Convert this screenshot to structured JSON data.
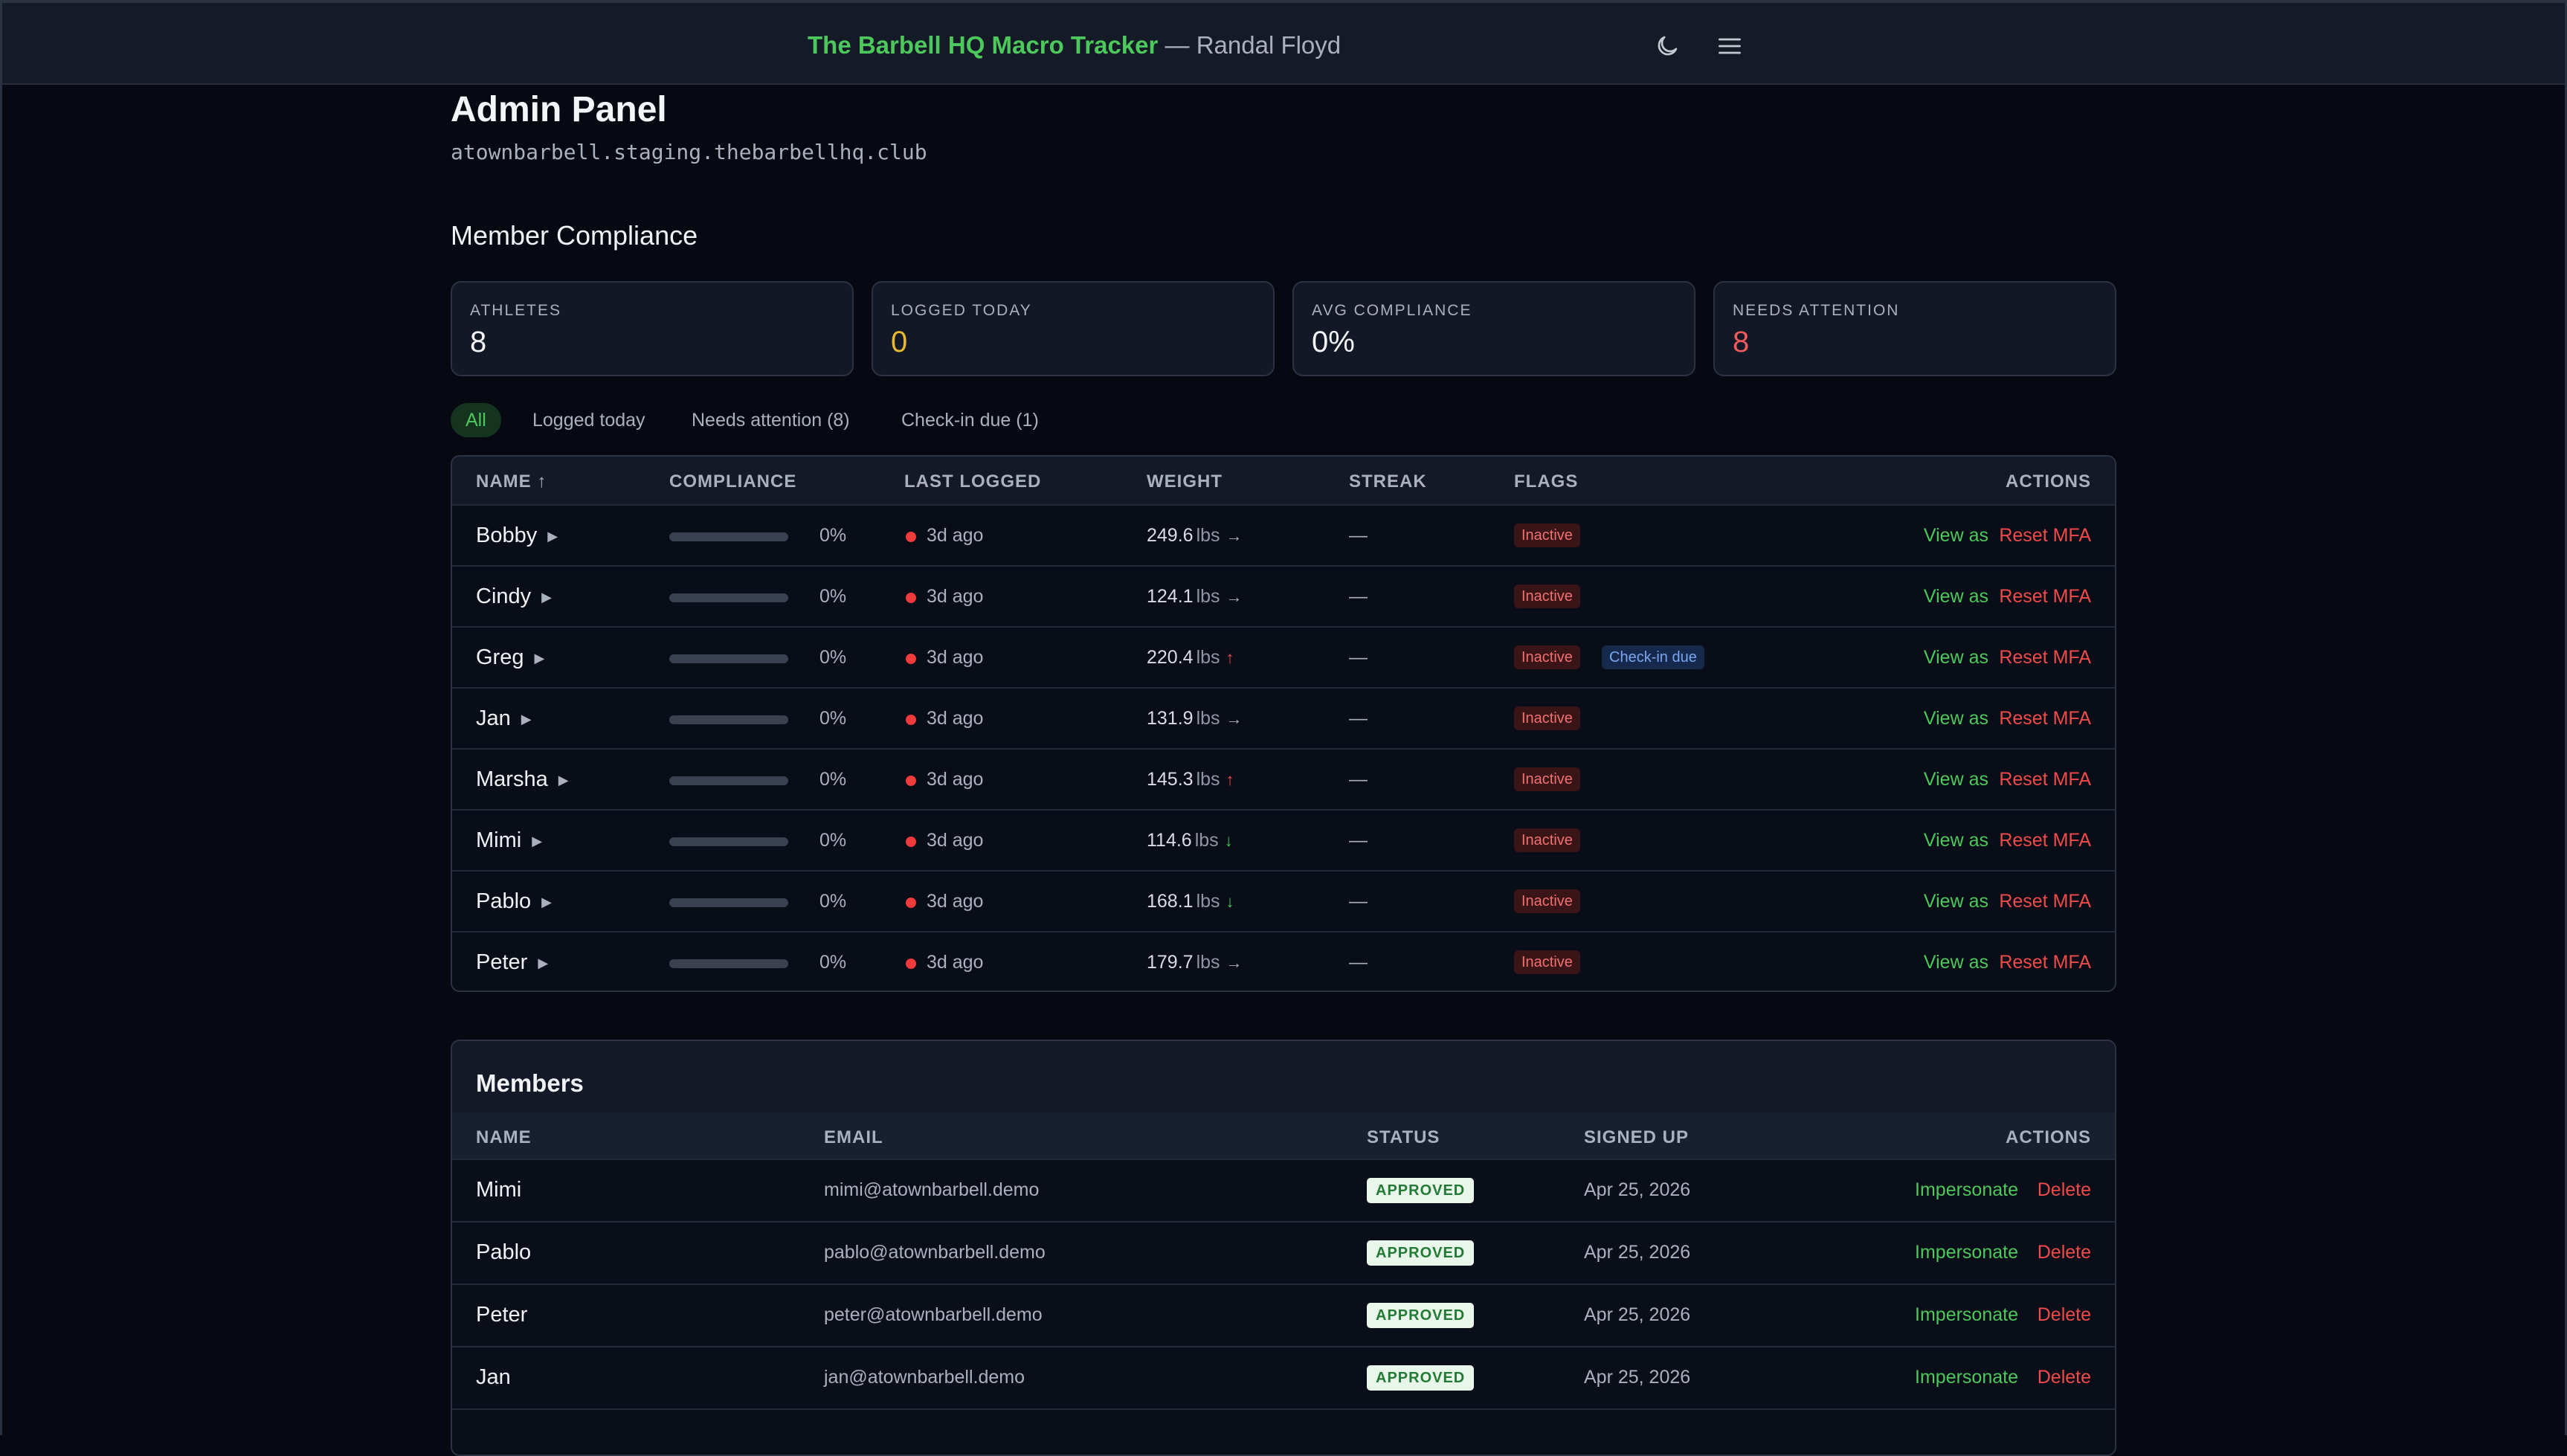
{
  "header": {
    "app_title": "The Barbell HQ Macro Tracker",
    "user_suffix": "— Randal Floyd",
    "icons": [
      "moon-icon",
      "menu-icon"
    ]
  },
  "page": {
    "title": "Admin Panel",
    "domain": "atownbarbell.staging.thebarbellhq.club"
  },
  "compliance": {
    "title": "Member Compliance",
    "stats": [
      {
        "label": "ATHLETES",
        "value": "8"
      },
      {
        "label": "LOGGED TODAY",
        "value": "0"
      },
      {
        "label": "AVG COMPLIANCE",
        "value": "0%"
      },
      {
        "label": "NEEDS ATTENTION",
        "value": "8"
      }
    ],
    "filters": [
      "All",
      "Logged today",
      "Needs attention (8)",
      "Check-in due (1)"
    ],
    "columns": [
      "NAME ↑",
      "COMPLIANCE",
      "LAST LOGGED",
      "WEIGHT",
      "STREAK",
      "FLAGS",
      "ACTIONS"
    ],
    "rows": [
      {
        "name": "Bobby",
        "caret": "▶",
        "compliance": 0,
        "compliance_label": "0%",
        "last_logged": "3d ago",
        "weight": "249.6",
        "unit": "lbs",
        "trend": "→",
        "trend_dir": "flat",
        "streak": "—",
        "flag": "Inactive",
        "flag2": "",
        "view": "View as",
        "reset": "Reset MFA"
      },
      {
        "name": "Cindy",
        "caret": "▶",
        "compliance": 0,
        "compliance_label": "0%",
        "last_logged": "3d ago",
        "weight": "124.1",
        "unit": "lbs",
        "trend": "→",
        "trend_dir": "flat",
        "streak": "—",
        "flag": "Inactive",
        "flag2": "",
        "view": "View as",
        "reset": "Reset MFA"
      },
      {
        "name": "Greg",
        "caret": "▶",
        "compliance": 0,
        "compliance_label": "0%",
        "last_logged": "3d ago",
        "weight": "220.4",
        "unit": "lbs",
        "trend": "↑",
        "trend_dir": "up",
        "streak": "—",
        "flag": "Inactive",
        "flag2": "Check-in due",
        "view": "View as",
        "reset": "Reset MFA"
      },
      {
        "name": "Jan",
        "caret": "▶",
        "compliance": 0,
        "compliance_label": "0%",
        "last_logged": "3d ago",
        "weight": "131.9",
        "unit": "lbs",
        "trend": "→",
        "trend_dir": "flat",
        "streak": "—",
        "flag": "Inactive",
        "flag2": "",
        "view": "View as",
        "reset": "Reset MFA"
      },
      {
        "name": "Marsha",
        "caret": "▶",
        "compliance": 0,
        "compliance_label": "0%",
        "last_logged": "3d ago",
        "weight": "145.3",
        "unit": "lbs",
        "trend": "↑",
        "trend_dir": "up",
        "streak": "—",
        "flag": "Inactive",
        "flag2": "",
        "view": "View as",
        "reset": "Reset MFA"
      },
      {
        "name": "Mimi",
        "caret": "▶",
        "compliance": 0,
        "compliance_label": "0%",
        "last_logged": "3d ago",
        "weight": "114.6",
        "unit": "lbs",
        "trend": "↓",
        "trend_dir": "down",
        "streak": "—",
        "flag": "Inactive",
        "flag2": "",
        "view": "View as",
        "reset": "Reset MFA"
      },
      {
        "name": "Pablo",
        "caret": "▶",
        "compliance": 0,
        "compliance_label": "0%",
        "last_logged": "3d ago",
        "weight": "168.1",
        "unit": "lbs",
        "trend": "↓",
        "trend_dir": "down",
        "streak": "—",
        "flag": "Inactive",
        "flag2": "",
        "view": "View as",
        "reset": "Reset MFA"
      },
      {
        "name": "Peter",
        "caret": "▶",
        "compliance": 0,
        "compliance_label": "0%",
        "last_logged": "3d ago",
        "weight": "179.7",
        "unit": "lbs",
        "trend": "→",
        "trend_dir": "flat",
        "streak": "—",
        "flag": "Inactive",
        "flag2": "",
        "view": "View as",
        "reset": "Reset MFA"
      }
    ]
  },
  "members": {
    "title": "Members",
    "columns": [
      "NAME",
      "EMAIL",
      "STATUS",
      "SIGNED UP",
      "ACTIONS"
    ],
    "rows": [
      {
        "name": "Mimi",
        "email": "mimi@atownbarbell.demo",
        "status": "APPROVED",
        "signed_up": "Apr 25, 2026",
        "impersonate": "Impersonate",
        "delete": "Delete"
      },
      {
        "name": "Pablo",
        "email": "pablo@atownbarbell.demo",
        "status": "APPROVED",
        "signed_up": "Apr 25, 2026",
        "impersonate": "Impersonate",
        "delete": "Delete"
      },
      {
        "name": "Peter",
        "email": "peter@atownbarbell.demo",
        "status": "APPROVED",
        "signed_up": "Apr 25, 2026",
        "impersonate": "Impersonate",
        "delete": "Delete"
      },
      {
        "name": "Jan",
        "email": "jan@atownbarbell.demo",
        "status": "APPROVED",
        "signed_up": "Apr 25, 2026",
        "impersonate": "Impersonate",
        "delete": "Delete"
      }
    ]
  },
  "colors": {
    "accent": "#4cc85c",
    "danger": "#ef4b4b",
    "warning": "#e8b931",
    "background": "#060912",
    "surface": "#121826"
  }
}
